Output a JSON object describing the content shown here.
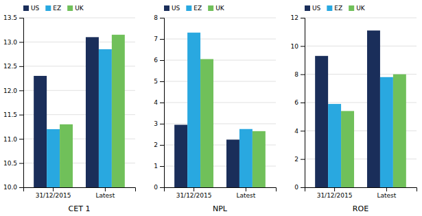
{
  "chart_data": [
    {
      "type": "bar",
      "title": "CET 1",
      "categories": [
        "31/12/2015",
        "Latest"
      ],
      "series": [
        {
          "name": "US",
          "color": "#1a2e5a",
          "values": [
            12.3,
            13.1
          ]
        },
        {
          "name": "EZ",
          "color": "#29a8e0",
          "values": [
            11.2,
            12.85
          ]
        },
        {
          "name": "UK",
          "color": "#70c05a",
          "values": [
            11.3,
            13.15
          ]
        }
      ],
      "ylim": [
        10.0,
        13.5
      ],
      "yticks": [
        {
          "value": 10.0,
          "label": "10.0"
        },
        10.5,
        {
          "value": 11.0,
          "label": "11.0"
        },
        11.5,
        {
          "value": 12.0,
          "label": "12.0"
        },
        12.5,
        {
          "value": 13.0,
          "label": "13.0"
        },
        13.5
      ],
      "grid": true,
      "legend": "upper left"
    },
    {
      "type": "bar",
      "title": "NPL",
      "categories": [
        "31/12/2015",
        "Latest"
      ],
      "series": [
        {
          "name": "US",
          "color": "#1a2e5a",
          "values": [
            2.95,
            2.25
          ]
        },
        {
          "name": "EZ",
          "color": "#29a8e0",
          "values": [
            7.3,
            2.75
          ]
        },
        {
          "name": "UK",
          "color": "#70c05a",
          "values": [
            6.05,
            2.65
          ]
        }
      ],
      "ylim": [
        0,
        8
      ],
      "yticks": [
        0,
        1,
        2,
        3,
        4,
        5,
        6,
        7,
        8
      ],
      "grid": true,
      "legend": "upper left"
    },
    {
      "type": "bar",
      "title": "ROE",
      "categories": [
        "31/12/2015",
        "Latest"
      ],
      "series": [
        {
          "name": "US",
          "color": "#1a2e5a",
          "values": [
            9.3,
            11.1
          ]
        },
        {
          "name": "EZ",
          "color": "#29a8e0",
          "values": [
            5.9,
            7.8
          ]
        },
        {
          "name": "UK",
          "color": "#70c05a",
          "values": [
            5.4,
            8.0
          ]
        }
      ],
      "ylim": [
        0,
        12
      ],
      "yticks": [
        0,
        2,
        4,
        6,
        8,
        10,
        12
      ],
      "grid": true,
      "legend": "upper left"
    }
  ]
}
